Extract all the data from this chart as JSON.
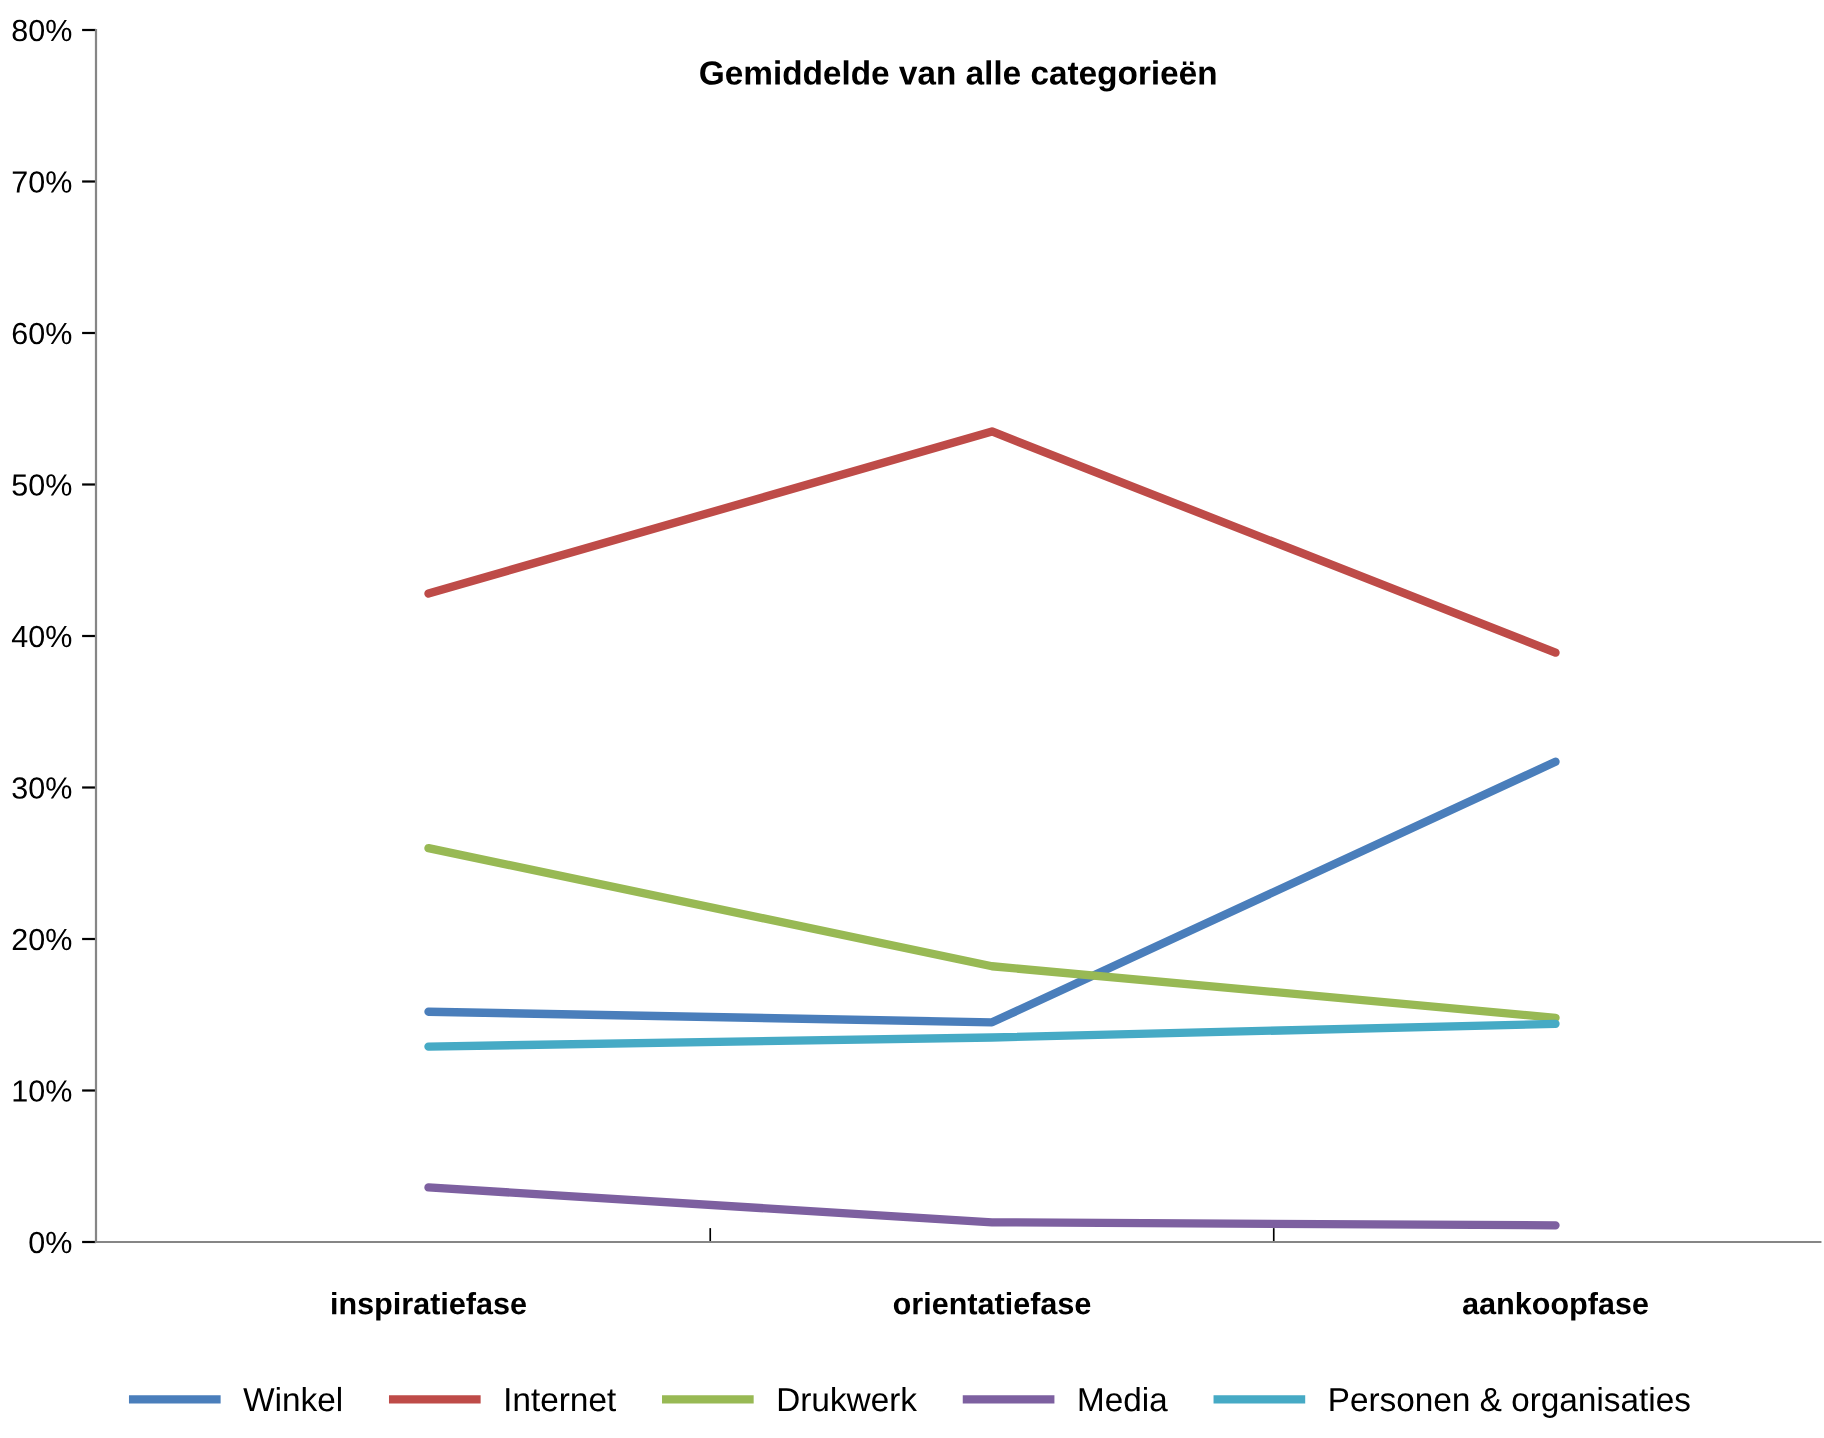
{
  "chart_data": {
    "type": "line",
    "title": "Gemiddelde van alle categorieën",
    "categories": [
      "inspiratiefase",
      "orientatiefase",
      "aankoopfase"
    ],
    "series": [
      {
        "name": "Winkel",
        "color": "#4a7ebb",
        "values": [
          15.2,
          14.5,
          31.7
        ]
      },
      {
        "name": "Internet",
        "color": "#be4b48",
        "values": [
          42.8,
          53.5,
          38.9
        ]
      },
      {
        "name": "Drukwerk",
        "color": "#98b954",
        "values": [
          26.0,
          18.2,
          14.8
        ]
      },
      {
        "name": "Media",
        "color": "#7d60a0",
        "values": [
          3.6,
          1.3,
          1.1
        ]
      },
      {
        "name": "Personen & organisaties",
        "color": "#46aac5",
        "values": [
          12.9,
          13.5,
          14.4
        ]
      }
    ],
    "ylim": [
      0,
      80
    ],
    "yticks": [
      {
        "value": 0,
        "label": "0%"
      },
      {
        "value": 10,
        "label": "10%"
      },
      {
        "value": 20,
        "label": "20%"
      },
      {
        "value": 30,
        "label": "30%"
      },
      {
        "value": 40,
        "label": "40%"
      },
      {
        "value": 50,
        "label": "50%"
      },
      {
        "value": 60,
        "label": "60%"
      },
      {
        "value": 70,
        "label": "70%"
      },
      {
        "value": 80,
        "label": "80%"
      }
    ],
    "grid": false,
    "legend": "bottom",
    "marker": "none",
    "line_style": "solid"
  }
}
